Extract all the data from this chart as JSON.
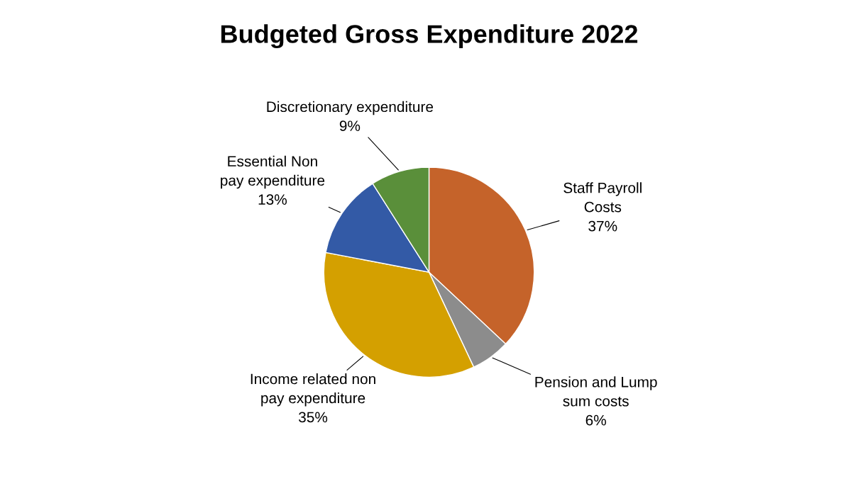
{
  "chart_data": {
    "type": "pie",
    "title": "Budgeted Gross Expenditure 2022",
    "categories": [
      "Staff Payroll Costs",
      "Pension and Lump sum costs",
      "Income related non pay expenditure",
      "Essential Non pay expenditure",
      "Discretionary expenditure"
    ],
    "values": [
      37,
      6,
      35,
      13,
      9
    ],
    "colors": [
      "#c5632a",
      "#8c8c8c",
      "#d4a000",
      "#335aa6",
      "#5a8f3a"
    ],
    "value_labels": [
      "37%",
      "6%",
      "35%",
      "13%",
      "9%"
    ],
    "legend": false
  }
}
